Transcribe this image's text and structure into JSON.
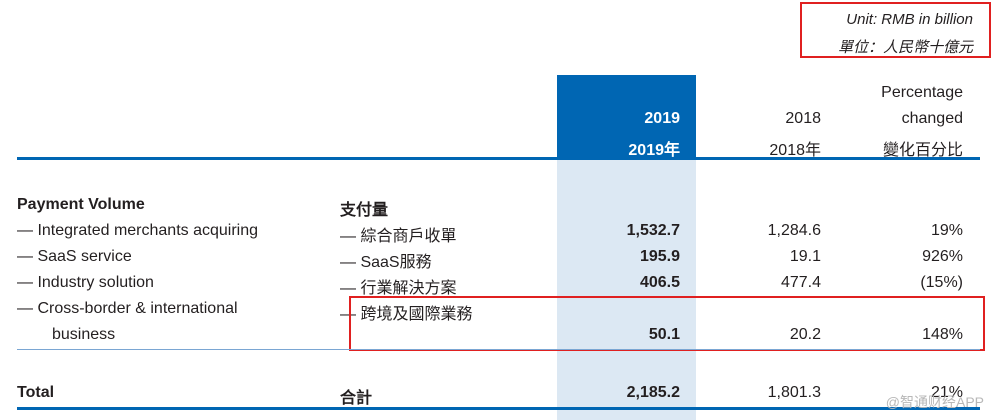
{
  "unit": {
    "en": "Unit: RMB in billion",
    "zh": "單位：人民幣十億元"
  },
  "headers": {
    "y2019": "2019",
    "y2019_zh": "2019年",
    "y2018": "2018",
    "y2018_zh": "2018年",
    "pct_1": "Percentage",
    "pct_2": "changed",
    "pct_zh": "變化百分比"
  },
  "section": {
    "en": "Payment Volume",
    "zh": "支付量"
  },
  "rows": [
    {
      "en": "— Integrated merchants acquiring",
      "zh": "— 綜合商戶收單",
      "v2019": "1,532.7",
      "v2018": "1,284.6",
      "pct": "19%"
    },
    {
      "en": "— SaaS service",
      "zh": "— SaaS服務",
      "v2019": "195.9",
      "v2018": "19.1",
      "pct": "926%"
    },
    {
      "en": "— Industry solution",
      "zh": "— 行業解決方案",
      "v2019": "406.5",
      "v2018": "477.4",
      "pct": "(15%)"
    },
    {
      "en": "— Cross-border & international",
      "en2": "business",
      "zh": "— 跨境及國際業務",
      "v2019": "50.1",
      "v2018": "20.2",
      "pct": "148%"
    }
  ],
  "total": {
    "en": "Total",
    "zh": "合計",
    "v2019": "2,185.2",
    "v2018": "1,801.3",
    "pct": "21%"
  },
  "watermark": "@智通财经APP"
}
